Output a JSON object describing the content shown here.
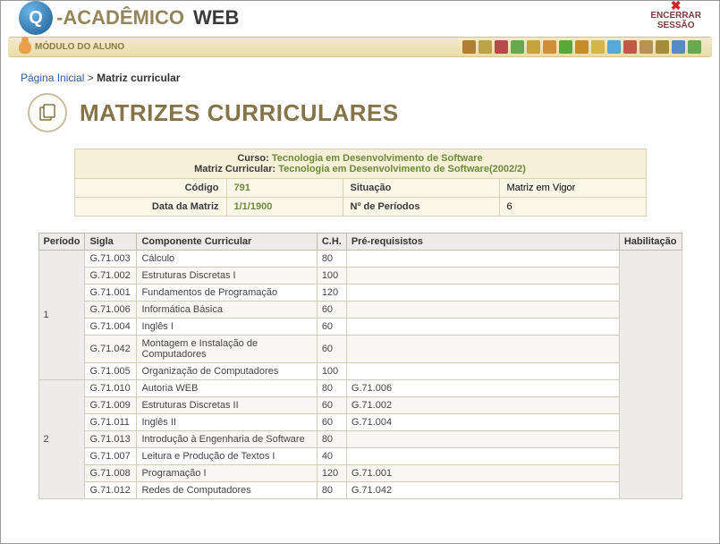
{
  "logo": {
    "letter": "Q",
    "brand1": "-ACADÊMICO",
    "brand2": "WEB"
  },
  "logout": {
    "label1": "ENCERRAR",
    "label2": "SESSÃO"
  },
  "module_label": "MÓDULO DO ALUNO",
  "toolbar_colors": [
    "#b08030",
    "#bda24a",
    "#b84a4a",
    "#6aa84f",
    "#c7a23d",
    "#d18f3a",
    "#5aa83a",
    "#c78c2a",
    "#d6b64a",
    "#5aa8d6",
    "#c25a4a",
    "#b79254",
    "#a68c3a",
    "#5a8ac2",
    "#6aa84f"
  ],
  "breadcrumb": {
    "home": "Página Inicial",
    "sep": ">",
    "current": "Matriz curricular"
  },
  "page_title": "MATRIZES CURRICULARES",
  "info": {
    "curso_label": "Curso:",
    "curso_value": "Tecnologia em Desenvolvimento de Software",
    "matriz_label": "Matriz Curricular:",
    "matriz_value": "Tecnologia em Desenvolvimento de Software(2002/2)",
    "codigo_label": "Código",
    "codigo_value": "791",
    "situacao_label": "Situação",
    "situacao_value": "Matriz em Vigor",
    "data_label": "Data da Matriz",
    "data_value": "1/1/1900",
    "nper_label": "Nº de Períodos",
    "nper_value": "6"
  },
  "grid": {
    "headers": {
      "periodo": "Período",
      "sigla": "Sigla",
      "componente": "Componente Curricular",
      "ch": "C.H.",
      "prereq": "Pré-requisistos",
      "hab": "Habilitação"
    },
    "periods": [
      {
        "num": "1",
        "rows": [
          {
            "sigla": "G.71.003",
            "comp": "Cálculo",
            "ch": "80",
            "pre": ""
          },
          {
            "sigla": "G.71.002",
            "comp": "Estruturas Discretas I",
            "ch": "100",
            "pre": ""
          },
          {
            "sigla": "G.71.001",
            "comp": "Fundamentos de Programação",
            "ch": "120",
            "pre": ""
          },
          {
            "sigla": "G.71.006",
            "comp": "Informática Básica",
            "ch": "60",
            "pre": ""
          },
          {
            "sigla": "G.71.004",
            "comp": "Inglês I",
            "ch": "60",
            "pre": ""
          },
          {
            "sigla": "G.71.042",
            "comp": "Montagem e Instalação de Computadores",
            "ch": "60",
            "pre": ""
          },
          {
            "sigla": "G.71.005",
            "comp": "Organização de Computadores",
            "ch": "100",
            "pre": ""
          }
        ]
      },
      {
        "num": "2",
        "rows": [
          {
            "sigla": "G.71.010",
            "comp": "Autoria WEB",
            "ch": "80",
            "pre": "G.71.006"
          },
          {
            "sigla": "G.71.009",
            "comp": "Estruturas Discretas II",
            "ch": "60",
            "pre": "G.71.002"
          },
          {
            "sigla": "G.71.011",
            "comp": "Inglês II",
            "ch": "60",
            "pre": "G.71.004"
          },
          {
            "sigla": "G.71.013",
            "comp": "Introdução à Engenharia de Software",
            "ch": "80",
            "pre": ""
          },
          {
            "sigla": "G.71.007",
            "comp": "Leitura e Produção de Textos I",
            "ch": "40",
            "pre": ""
          },
          {
            "sigla": "G.71.008",
            "comp": "Programação I",
            "ch": "120",
            "pre": "G.71.001"
          },
          {
            "sigla": "G.71.012",
            "comp": "Redes de Computadores",
            "ch": "80",
            "pre": "G.71.042"
          }
        ]
      }
    ]
  }
}
